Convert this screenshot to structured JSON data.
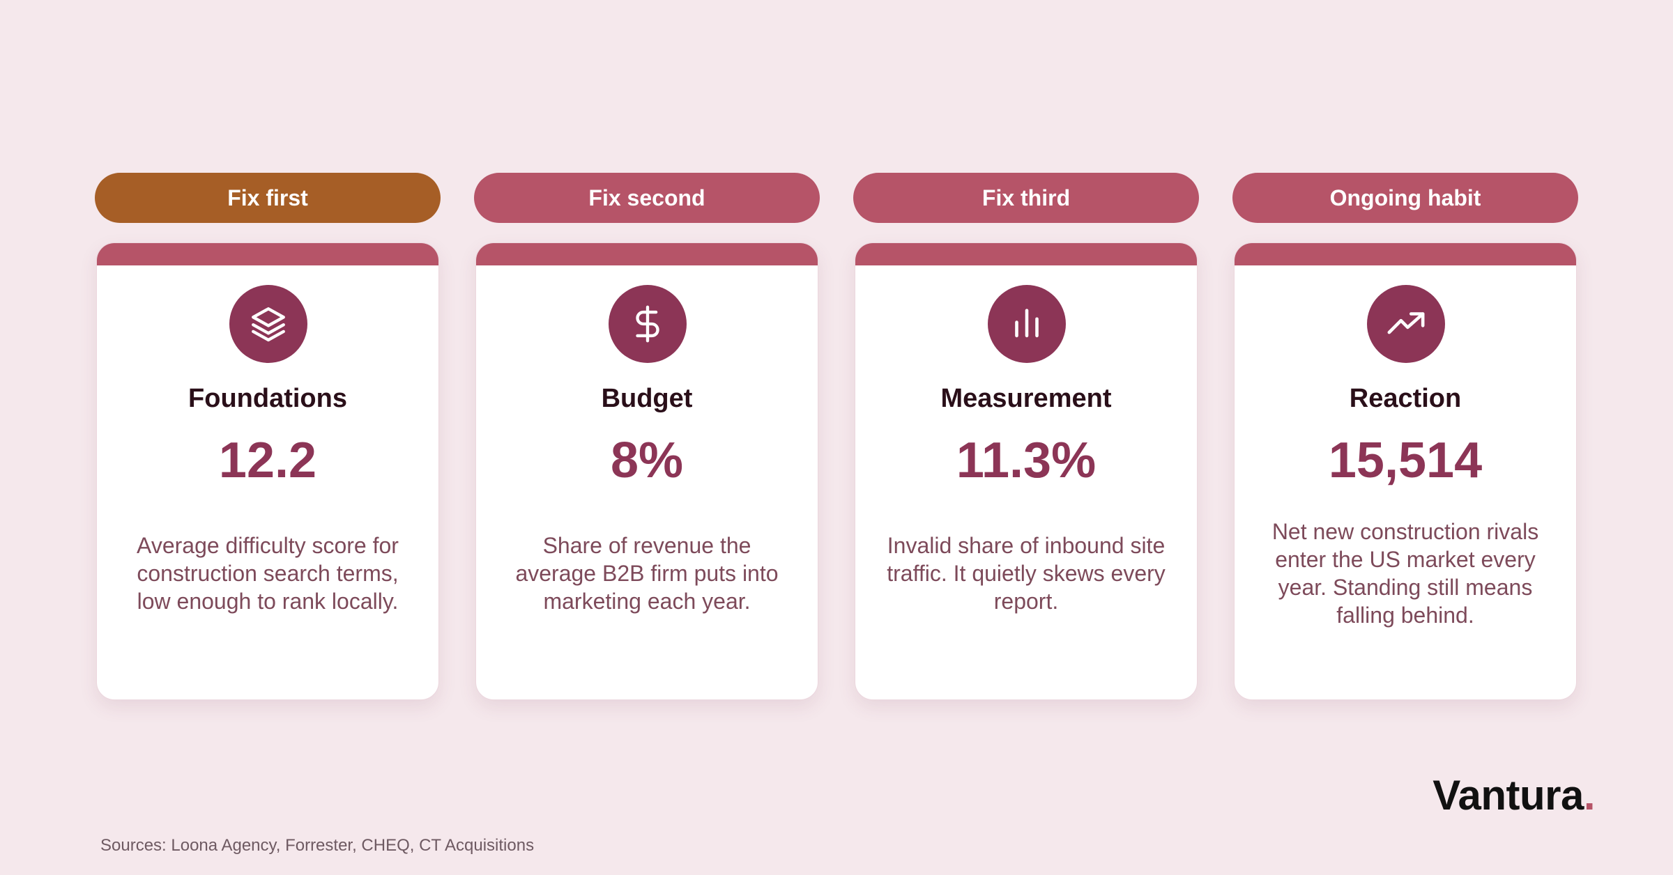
{
  "colors": {
    "background": "#f5e8ec",
    "pill_first": "#a65e26",
    "pill_default": "#b65468",
    "card_bar": "#b65468",
    "icon_circle": "#8c3556",
    "stat": "#8c3556",
    "brand_dot": "#b65468"
  },
  "columns": [
    {
      "pill": "Fix first",
      "icon": "layers-icon",
      "title": "Foundations",
      "stat": "12.2",
      "description": "Average difficulty score for construction search terms, low enough to rank locally."
    },
    {
      "pill": "Fix second",
      "icon": "dollar-icon",
      "title": "Budget",
      "stat": "8%",
      "description": "Share of revenue the average B2B firm puts into marketing each year."
    },
    {
      "pill": "Fix third",
      "icon": "bar-chart-icon",
      "title": "Measurement",
      "stat": "11.3%",
      "description": "Invalid share of inbound site traffic. It quietly skews every report."
    },
    {
      "pill": "Ongoing habit",
      "icon": "trending-up-icon",
      "title": "Reaction",
      "stat": "15,514",
      "description": "Net new construction rivals enter the US market every year. Standing still means falling behind."
    }
  ],
  "brand": {
    "name": "Vantura",
    "dot": "."
  },
  "sources": "Sources: Loona Agency, Forrester, CHEQ, CT Acquisitions"
}
